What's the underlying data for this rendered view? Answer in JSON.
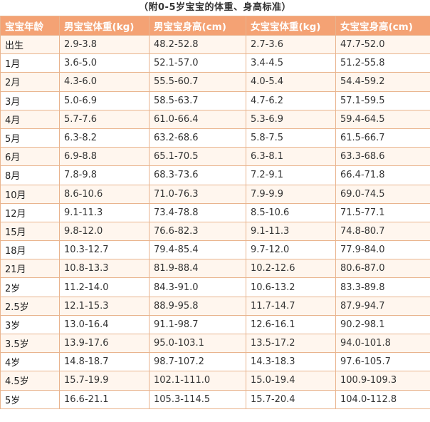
{
  "caption": "（附0-5岁宝宝的体重、身高标准）",
  "colors": {
    "header_bg": "#f4a274",
    "header_text": "#ffffff",
    "border": "#e9b48e",
    "row_alt_bg": "#fff6ee"
  },
  "table": {
    "headers": [
      "宝宝年龄",
      "男宝宝体重(kg)",
      "男宝宝身高(cm)",
      "女宝宝体重(kg)",
      "女宝宝身高(cm)"
    ],
    "rows": [
      [
        "出生",
        "2.9-3.8",
        "48.2-52.8",
        "2.7-3.6",
        "47.7-52.0"
      ],
      [
        "1月",
        "3.6-5.0",
        "52.1-57.0",
        "3.4-4.5",
        "51.2-55.8"
      ],
      [
        "2月",
        "4.3-6.0",
        "55.5-60.7",
        "4.0-5.4",
        "54.4-59.2"
      ],
      [
        "3月",
        "5.0-6.9",
        "58.5-63.7",
        "4.7-6.2",
        "57.1-59.5"
      ],
      [
        "4月",
        "5.7-7.6",
        "61.0-66.4",
        "5.3-6.9",
        "59.4-64.5"
      ],
      [
        "5月",
        "6.3-8.2",
        "63.2-68.6",
        "5.8-7.5",
        "61.5-66.7"
      ],
      [
        "6月",
        "6.9-8.8",
        "65.1-70.5",
        "6.3-8.1",
        "63.3-68.6"
      ],
      [
        "8月",
        "7.8-9.8",
        "68.3-73.6",
        "7.2-9.1",
        "66.4-71.8"
      ],
      [
        "10月",
        "8.6-10.6",
        "71.0-76.3",
        "7.9-9.9",
        "69.0-74.5"
      ],
      [
        "12月",
        "9.1-11.3",
        "73.4-78.8",
        "8.5-10.6",
        "71.5-77.1"
      ],
      [
        "15月",
        "9.8-12.0",
        "76.6-82.3",
        "9.1-11.3",
        "74.8-80.7"
      ],
      [
        "18月",
        "10.3-12.7",
        "79.4-85.4",
        "9.7-12.0",
        "77.9-84.0"
      ],
      [
        "21月",
        "10.8-13.3",
        "81.9-88.4",
        "10.2-12.6",
        "80.6-87.0"
      ],
      [
        "2岁",
        "11.2-14.0",
        "84.3-91.0",
        "10.6-13.2",
        "83.3-89.8"
      ],
      [
        "2.5岁",
        "12.1-15.3",
        "88.9-95.8",
        "11.7-14.7",
        "87.9-94.7"
      ],
      [
        "3岁",
        "13.0-16.4",
        "91.1-98.7",
        "12.6-16.1",
        "90.2-98.1"
      ],
      [
        "3.5岁",
        "13.9-17.6",
        "95.0-103.1",
        "13.5-17.2",
        "94.0-101.8"
      ],
      [
        "4岁",
        "14.8-18.7",
        "98.7-107.2",
        "14.3-18.3",
        "97.6-105.7"
      ],
      [
        "4.5岁",
        "15.7-19.9",
        "102.1-111.0",
        "15.0-19.4",
        "100.9-109.3"
      ],
      [
        "5岁",
        "16.6-21.1",
        "105.3-114.5",
        "15.7-20.4",
        "104.0-112.8"
      ]
    ]
  }
}
